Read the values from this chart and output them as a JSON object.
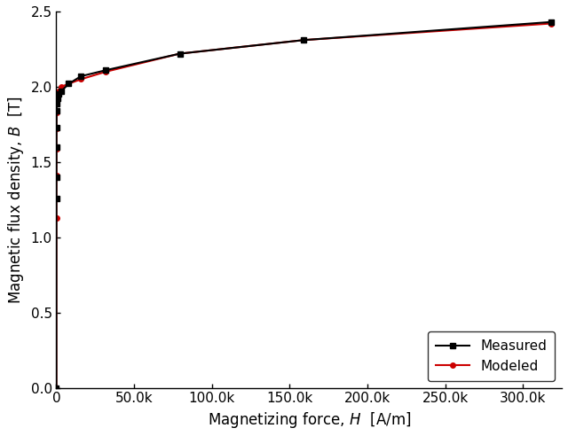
{
  "measured_H": [
    0,
    23.9,
    31.8,
    47.7,
    79.5,
    159,
    318,
    795,
    1590,
    3180,
    7960,
    15900,
    31800,
    79500,
    159000,
    318000
  ],
  "measured_B": [
    0.0,
    1.26,
    1.4,
    1.6,
    1.73,
    1.84,
    1.89,
    1.92,
    1.95,
    1.97,
    2.02,
    2.07,
    2.11,
    2.22,
    2.31,
    2.43
  ],
  "modeled_H": [
    0,
    15.9,
    23.9,
    31.8,
    47.7,
    79.5,
    159,
    318,
    795,
    1590,
    3180,
    7960,
    15900,
    31800,
    79500,
    159000,
    318000
  ],
  "modeled_B": [
    0.0,
    1.13,
    1.41,
    1.59,
    1.72,
    1.83,
    1.89,
    1.93,
    1.96,
    1.97,
    2.0,
    2.02,
    2.05,
    2.1,
    2.22,
    2.31,
    2.42
  ],
  "xlabel": "Magnetizing force, $H$  [A/m]",
  "ylabel": "Magnetic flux density, $B$  [T]",
  "xlim": [
    0,
    325000
  ],
  "ylim": [
    0.0,
    2.5
  ],
  "measured_color": "#000000",
  "modeled_color": "#cc0000",
  "measured_label": "Measured",
  "modeled_label": "Modeled",
  "measured_marker": "s",
  "modeled_marker": "o",
  "marker_size": 4,
  "linewidth": 1.5,
  "legend_loc": "lower right",
  "xtick_interval": 50000,
  "ytick_interval": 0.5,
  "figwidth": 6.4,
  "figheight": 4.92,
  "dpi": 100,
  "tick_labelsize": 11,
  "axis_labelsize": 12
}
